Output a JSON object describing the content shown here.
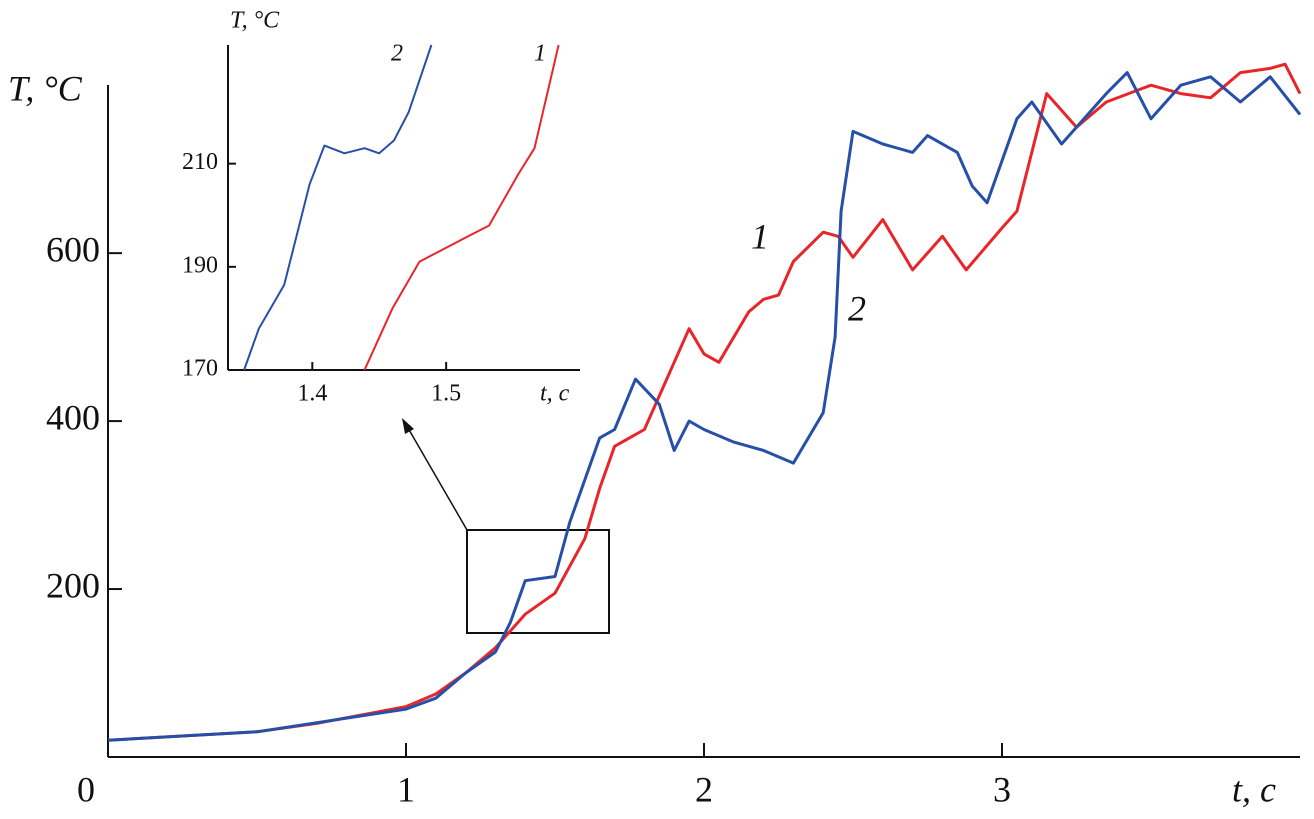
{
  "chart_data": [
    {
      "type": "line",
      "x_label": "t, c",
      "y_label": "T, °C",
      "xlim": [
        0,
        4
      ],
      "ylim": [
        0,
        830
      ],
      "xticks": [
        0,
        1,
        2,
        3
      ],
      "yticks": [
        200,
        400,
        600
      ],
      "series": [
        {
          "name": "1",
          "color": "#e8262a",
          "x": [
            0,
            0.5,
            0.7,
            1.0,
            1.1,
            1.2,
            1.3,
            1.4,
            1.5,
            1.6,
            1.65,
            1.7,
            1.8,
            1.9,
            1.95,
            2.0,
            2.05,
            2.15,
            2.2,
            2.25,
            2.3,
            2.4,
            2.45,
            2.5,
            2.6,
            2.7,
            2.8,
            2.88,
            3.0,
            3.05,
            3.1,
            3.15,
            3.2,
            3.25,
            3.35,
            3.5,
            3.6,
            3.7,
            3.8,
            3.9,
            3.95,
            4.0
          ],
          "values": [
            20,
            30,
            40,
            60,
            75,
            100,
            130,
            170,
            195,
            260,
            320,
            370,
            390,
            470,
            510,
            480,
            470,
            530,
            545,
            550,
            590,
            625,
            620,
            595,
            640,
            580,
            620,
            580,
            630,
            650,
            720,
            790,
            770,
            750,
            780,
            800,
            790,
            785,
            815,
            820,
            825,
            790
          ]
        },
        {
          "name": "2",
          "color": "#2650a8",
          "x": [
            0,
            0.5,
            1.0,
            1.1,
            1.2,
            1.3,
            1.35,
            1.4,
            1.5,
            1.55,
            1.6,
            1.65,
            1.7,
            1.77,
            1.85,
            1.9,
            1.95,
            2.0,
            2.1,
            2.2,
            2.3,
            2.4,
            2.44,
            2.46,
            2.5,
            2.6,
            2.7,
            2.75,
            2.85,
            2.9,
            2.95,
            3.05,
            3.1,
            3.2,
            3.3,
            3.35,
            3.42,
            3.5,
            3.6,
            3.7,
            3.8,
            3.9,
            4.0
          ],
          "values": [
            20,
            30,
            57,
            70,
            100,
            125,
            160,
            210,
            215,
            280,
            330,
            380,
            390,
            450,
            420,
            365,
            400,
            390,
            375,
            365,
            350,
            410,
            500,
            650,
            745,
            730,
            720,
            740,
            720,
            680,
            660,
            760,
            780,
            730,
            770,
            790,
            815,
            760,
            800,
            810,
            780,
            810,
            765
          ]
        }
      ]
    },
    {
      "type": "line",
      "x_label": "t, c",
      "y_label": "T, °C",
      "xlim": [
        1.337,
        1.6
      ],
      "ylim": [
        170,
        233
      ],
      "xticks": [
        1.4,
        1.5
      ],
      "yticks": [
        170,
        190,
        210
      ],
      "series": [
        {
          "name": "1",
          "color": "#e8262a",
          "x": [
            1.439,
            1.46,
            1.48,
            1.517,
            1.532,
            1.554,
            1.566,
            1.584
          ],
          "values": [
            170,
            182,
            191,
            196,
            198,
            208,
            213,
            233
          ]
        },
        {
          "name": "2",
          "color": "#2650a8",
          "x": [
            1.349,
            1.36,
            1.379,
            1.398,
            1.409,
            1.424,
            1.439,
            1.45,
            1.461,
            1.472,
            1.489
          ],
          "values": [
            170,
            178,
            186.5,
            206,
            213.5,
            212,
            213,
            212,
            214.5,
            220,
            233
          ]
        }
      ]
    }
  ]
}
